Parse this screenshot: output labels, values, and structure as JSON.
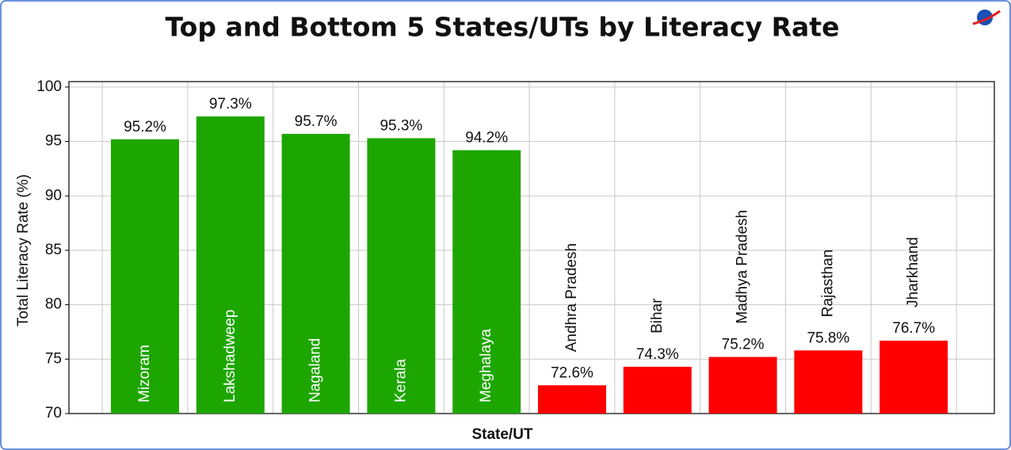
{
  "chart_data": {
    "type": "bar",
    "title": "Top and Bottom 5 States/UTs by Literacy Rate",
    "y_label": "Total Literacy Rate (%)",
    "x_label": "State/UT",
    "categories": [
      "Mizoram",
      "Lakshadweep",
      "Nagaland",
      "Kerala",
      "Meghalaya",
      "Andhra Pradesh",
      "Bihar",
      "Madhya Pradesh",
      "Rajasthan",
      "Jharkhand"
    ],
    "values": [
      95.2,
      97.3,
      95.7,
      95.3,
      94.2,
      72.6,
      74.3,
      75.2,
      75.8,
      76.7
    ],
    "value_labels": [
      "95.2%",
      "97.3%",
      "95.7%",
      "95.3%",
      "94.2%",
      "72.6%",
      "74.3%",
      "75.2%",
      "75.8%",
      "76.7%"
    ],
    "colors": [
      "#1ea600",
      "#1ea600",
      "#1ea600",
      "#1ea600",
      "#1ea600",
      "#ff0000",
      "#ff0000",
      "#ff0000",
      "#ff0000",
      "#ff0000"
    ],
    "ylim": [
      70,
      100.5
    ],
    "yticks": [
      70,
      75,
      80,
      85,
      90,
      95,
      100
    ],
    "grid": true
  }
}
